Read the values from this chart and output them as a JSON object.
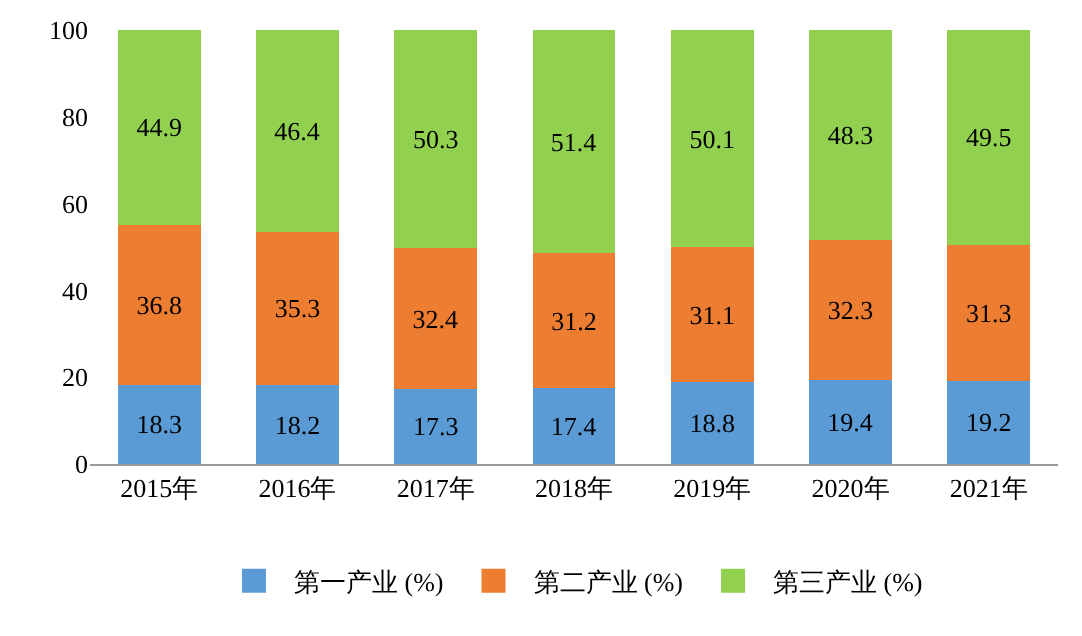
{
  "chart_data": {
    "type": "bar",
    "stacked": true,
    "data_labels": true,
    "categories": [
      "2015年",
      "2016年",
      "2017年",
      "2018年",
      "2019年",
      "2020年",
      "2021年"
    ],
    "series": [
      {
        "name": "第一产业 (%)",
        "color": "#5b9bd5",
        "values": [
          18.3,
          18.2,
          17.3,
          17.4,
          18.8,
          19.4,
          19.2
        ]
      },
      {
        "name": "第二产业 (%)",
        "color": "#ed7d31",
        "values": [
          36.8,
          35.3,
          32.4,
          31.2,
          31.1,
          32.3,
          31.3
        ]
      },
      {
        "name": "第三产业 (%)",
        "color": "#92d050",
        "values": [
          44.9,
          46.4,
          50.3,
          51.4,
          50.1,
          48.3,
          49.5
        ]
      }
    ],
    "ylim": [
      0,
      100
    ],
    "yticks": [
      0,
      20,
      40,
      60,
      80,
      100
    ],
    "grid": false,
    "legend": "bottom"
  }
}
